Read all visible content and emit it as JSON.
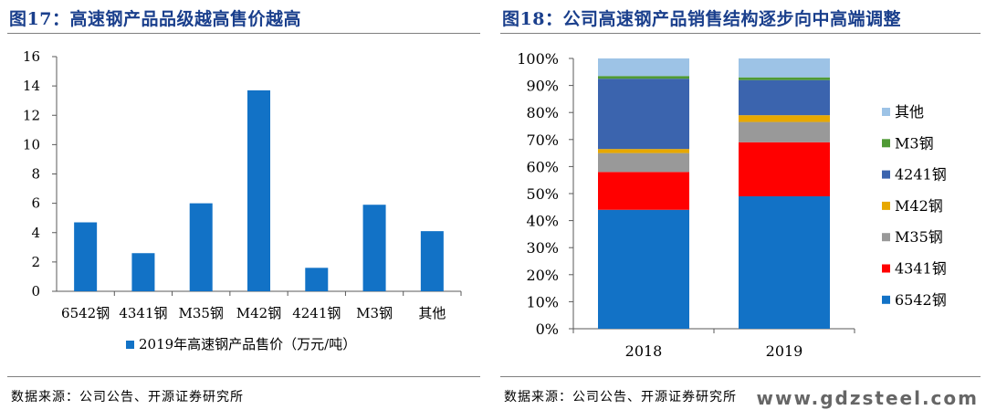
{
  "left": {
    "title": "图17：高速钢产品品级越高售价越高",
    "source": "数据来源：公司公告、开源证券研究所"
  },
  "right": {
    "title": "图18：公司高速钢产品销售结构逐步向中高端调整",
    "source": "数据来源：公司公告、开源证券研究所"
  },
  "watermark": "www.gdzsteel.com",
  "colors": {
    "title": "#1a3f8c",
    "bar": "#1272c6",
    "axis": "#595959"
  },
  "chart_data": [
    {
      "type": "bar",
      "categories": [
        "6542钢",
        "4341钢",
        "M35钢",
        "M42钢",
        "4241钢",
        "M3钢",
        "其他"
      ],
      "values": [
        4.7,
        2.6,
        6.0,
        13.7,
        1.6,
        5.9,
        4.1
      ],
      "series_name": "2019年高速钢产品售价（万元/吨）",
      "ylim": [
        0,
        16
      ],
      "yticks": [
        "0",
        "2",
        "4",
        "6",
        "8",
        "10",
        "12",
        "14",
        "16"
      ],
      "legend_position": "bottom",
      "grid": false
    },
    {
      "type": "bar",
      "stacked": true,
      "categories": [
        "2018",
        "2019"
      ],
      "series": [
        {
          "name": "6542钢",
          "color": "#1272c6",
          "values": [
            44,
            49
          ]
        },
        {
          "name": "4341钢",
          "color": "#ff0000",
          "values": [
            14,
            20
          ]
        },
        {
          "name": "M35钢",
          "color": "#999999",
          "values": [
            7,
            7.5
          ]
        },
        {
          "name": "M42钢",
          "color": "#e7a800",
          "values": [
            1.5,
            2.5
          ]
        },
        {
          "name": "4241钢",
          "color": "#3b64ae",
          "values": [
            26,
            13
          ]
        },
        {
          "name": "M3钢",
          "color": "#4f9a35",
          "values": [
            1,
            1
          ]
        },
        {
          "name": "其他",
          "color": "#9dc3e6",
          "values": [
            6.5,
            7
          ]
        }
      ],
      "ylim": [
        0,
        100
      ],
      "yticks": [
        "0%",
        "10%",
        "20%",
        "30%",
        "40%",
        "50%",
        "60%",
        "70%",
        "80%",
        "90%",
        "100%"
      ],
      "legend_position": "right",
      "grid": false
    }
  ]
}
